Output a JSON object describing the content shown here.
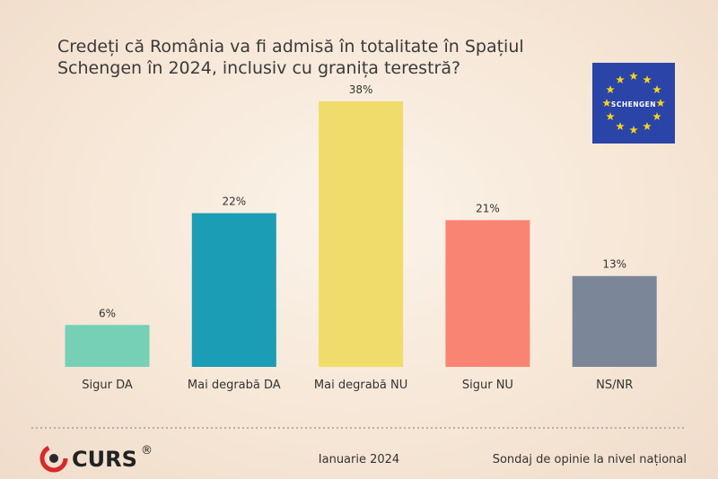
{
  "chart_data": {
    "type": "bar",
    "title": "Credeți că România va fi admisă în totalitate în Spațiul Schengen în 2024, inclusiv cu granița terestră?",
    "categories": [
      "Sigur DA",
      "Mai degrabă DA",
      "Mai degrabă NU",
      "Sigur NU",
      "NS/NR"
    ],
    "values": [
      6,
      22,
      38,
      21,
      13
    ],
    "value_labels": [
      "6%",
      "22%",
      "38%",
      "21%",
      "13%"
    ],
    "colors": [
      "#76d0b6",
      "#1b9db6",
      "#f0dc6a",
      "#fa8474",
      "#7b8799"
    ]
  },
  "badge": "SCHENGEN",
  "footer": {
    "logo": "CURS",
    "logo_mark": "®",
    "date": "Ianuarie 2024",
    "note": "Sondaj de opinie la nivel național"
  }
}
